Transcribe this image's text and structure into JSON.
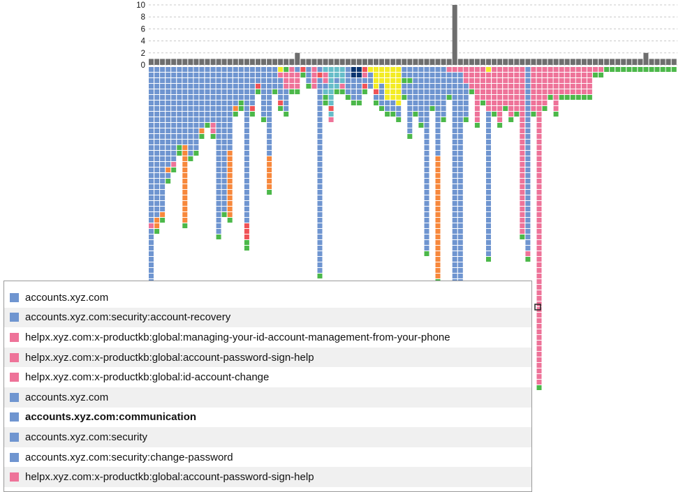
{
  "chart_data": {
    "type": "bar",
    "description_hint": "",
    "y_ticks": [
      "10",
      "8",
      "6",
      "4",
      "2",
      "0"
    ],
    "ylim": [
      0,
      10
    ],
    "grid": true,
    "bar_values": [
      1,
      1,
      1,
      1,
      1,
      1,
      1,
      1,
      1,
      1,
      1,
      1,
      1,
      1,
      1,
      1,
      1,
      1,
      1,
      1,
      1,
      1,
      1,
      1,
      1,
      1,
      2,
      1,
      1,
      1,
      1,
      1,
      1,
      1,
      1,
      1,
      1,
      1,
      1,
      1,
      1,
      1,
      1,
      1,
      1,
      1,
      1,
      1,
      1,
      1,
      1,
      1,
      1,
      1,
      10,
      1,
      1,
      1,
      1,
      1,
      1,
      1,
      1,
      1,
      1,
      1,
      1,
      1,
      1,
      1,
      1,
      1,
      1,
      1,
      1,
      1,
      1,
      1,
      1,
      1,
      1,
      1,
      1,
      1,
      1,
      1,
      1,
      1,
      2,
      1,
      1,
      1,
      1,
      1
    ],
    "column_stacks": [
      "BBBBBBBBBBBBBBBBBBBBBBBBBBBBPBBBBBBBBBBG",
      "BBBBBBBBBBBBBBBBBBBBBBBBBBBOOG",
      "BBBBBBBBBBBBBBBBBBBBBBBBBBOG",
      "BBBBBBBBBBBBBBBBBBOBG",
      "BBBBBBBBBBBBBBBBBPG",
      "BBBBBBBBBBBBBBGG",
      "BBBBBBBBBBBBBBOOOOOOOOOOOOOOG",
      "BBBBBBBBBBBBBBBBG",
      "BBBBBBBBBBBBBBBG",
      "BBBBBBBBBBBOG",
      "BBBBBBBBBBG",
      "BBBBBBBBBBPPG",
      "BBBBBBBBBBBBBBBBBBBBBBBBBBBBBBG",
      "BBBBBBBBBBBBBBBBBBBBBBBBBBG",
      "BBBBBBBBBBBBBBBOOOOOOOOOOOOG",
      "BBBBBBBOG",
      "BBBBBBGG",
      "BBBBBBBBBBBBBBBBBBBBBBBBBBBBRRRGG",
      "BBBBBBBRG",
      "BBBRG",
      "BBBBBBBBBG",
      "BBBBBBBBBBBBBBBBOOOOOOG",
      "BBBBG",
      "YPBBBBRG",
      "GPPPBBBBG",
      "PPPPG",
      "BPPPG",
      "RG",
      "BBBG",
      "PPPP",
      "BRBBBBBBBBBBBBBBBBBBBBBBBBBBBBBBBBBBBG",
      "TPPBTGG",
      "TTTTTTTRTP",
      "TTBTG",
      "TTTPG",
      "BBBBBG",
      "NNBBBBG",
      "NNBBBBG",
      "RPBRG",
      "YBBB",
      "YYYYRBG",
      "YYYBBBBG",
      "YYYYYYBBG",
      "YYYYYYBBG",
      "YYYYYYYBBG",
      "BBGBBG",
      "BBGBBBBBBBBBG",
      "BBBBBBBBG",
      "BBBBBBBBBBG",
      "BBBBBBBBBBBBBBBBBBBBBBBBBBBBBBBBBG",
      "BBBBBBBG",
      "BBBBBBBBBBBBBBBBOOOOOOOOOOOOOOOOOOOOOOG",
      "BBBBBBBBBG",
      "PBBBBG",
      "PBBBBBBBBBBBBBBBBBBBBBBBBBBBBBBBBBBBBBBBBBBBBBBBBG",
      "PBBBBBBBBBBBBBBBBBBBBBBBBBBBBBBBBBBBBBBBBBBBBBBBBG",
      "PPPBBBBBBG",
      "PPPPG",
      "PPPPPPPPPPG",
      "PPPPPPG",
      "YPPPPPPPBBBBBBBBBBBBBBBBBBBBBBBBBBG",
      "PPPPPPPPG",
      "PPPPPPPPPPG",
      "PPPPPPPG",
      "PPPPPPPPPG",
      "PPPPPPPPG",
      "PPPPPPPPPPPPPPPPPPPPPPPPPPPPPPG",
      "BBBBBBBBBBBBBBBBBBBBBBBBBBBBBBBBBPG",
      "PPPPPPPPG",
      "PPPPPPPPPPPPPPPPPPPPPPPPPPPPPPPPPPPPPPPPPPPPPPPPPPPPPPPPPG",
      "PPPPPPPG",
      "PPPPPG",
      "PPPPPPPPG",
      "PPPPPG",
      "PPPPPG",
      "PPPPPG",
      "PPPPPG",
      "PPPPPG",
      "PPPPPG",
      "PG",
      "PG",
      "G",
      "G",
      "G",
      "G",
      "G",
      "G",
      "G",
      "G",
      "G",
      "G",
      "G",
      "G",
      "G"
    ],
    "legend_colors": {
      "B": "#6f95d0",
      "P": "#ee7399",
      "G": "#4cb84a",
      "O": "#f7883c",
      "R": "#f05357",
      "T": "#67bdc9",
      "Y": "#f3ec25",
      "N": "#0b3570",
      "U": "#8c6aa9",
      "K": "#9aa23a"
    },
    "bar_color": "#6e6e6e"
  },
  "tooltip": {
    "items": [
      {
        "label": "accounts.xyz.com",
        "color": "#6f95d0",
        "bold": false
      },
      {
        "label": "accounts.xyz.com:security:account-recovery",
        "color": "#6f95d0",
        "bold": false
      },
      {
        "label": "helpx.xyz.com:x-productkb:global:managing-your-id-account-management-from-your-phone",
        "color": "#ee7399",
        "bold": false
      },
      {
        "label": "helpx.xyz.com:x-productkb:global:account-password-sign-help",
        "color": "#ee7399",
        "bold": false
      },
      {
        "label": "helpx.xyz.com:x-productkb:global:id-account-change",
        "color": "#ee7399",
        "bold": false
      },
      {
        "label": "accounts.xyz.com",
        "color": "#6f95d0",
        "bold": false
      },
      {
        "label": "accounts.xyz.com:communication",
        "color": "#6f95d0",
        "bold": true
      },
      {
        "label": "accounts.xyz.com:security",
        "color": "#6f95d0",
        "bold": false
      },
      {
        "label": "accounts.xyz.com:security:change-password",
        "color": "#6f95d0",
        "bold": false
      },
      {
        "label": "helpx.xyz.com:x-productkb:global:account-password-sign-help",
        "color": "#ee7399",
        "bold": false
      }
    ]
  }
}
